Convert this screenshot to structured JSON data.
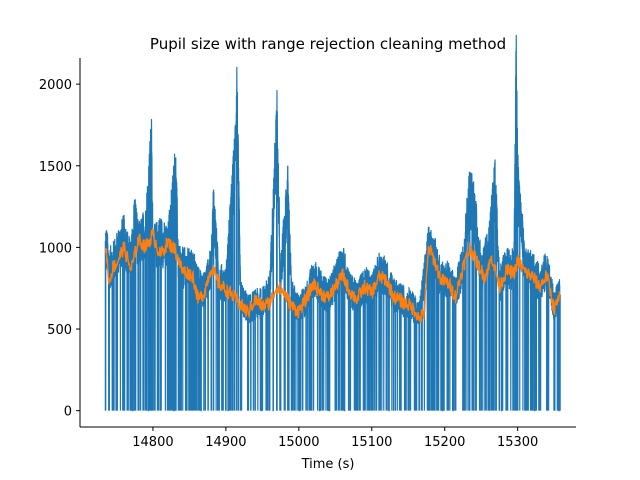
{
  "chart_data": {
    "type": "line",
    "title": "Pupil size with range rejection cleaning method",
    "xlabel": "Time (s)",
    "ylabel": "",
    "xlim": [
      14700,
      15380
    ],
    "ylim": [
      -100,
      2160
    ],
    "xticks": [
      14800,
      14900,
      15000,
      15100,
      15200,
      15300
    ],
    "yticks": [
      0,
      500,
      1000,
      1500,
      2000
    ],
    "grid": false,
    "legend": "none",
    "colors": {
      "raw": "#1f77b4",
      "cleaned": "#ff7f0e"
    },
    "series": [
      {
        "key": "raw",
        "x": [
          14735,
          14740,
          14745,
          14750,
          14760,
          14770,
          14775,
          14780,
          14790,
          14798,
          14800,
          14810,
          14820,
          14831,
          14835,
          14845,
          14855,
          14862,
          14870,
          14880,
          14883,
          14890,
          14900,
          14912,
          14915,
          14920,
          14930,
          14940,
          14950,
          14960,
          14970,
          14975,
          14985,
          14990,
          15000,
          15010,
          15020,
          15030,
          15040,
          15050,
          15060,
          15070,
          15080,
          15090,
          15100,
          15110,
          15120,
          15130,
          15140,
          15150,
          15160,
          15165,
          15178,
          15185,
          15195,
          15205,
          15215,
          15225,
          15234,
          15240,
          15250,
          15260,
          15269,
          15275,
          15285,
          15295,
          15298,
          15300,
          15310,
          15320,
          15330,
          15340,
          15350,
          15358
        ],
        "y": [
          1040,
          870,
          900,
          960,
          1050,
          900,
          1190,
          1000,
          1100,
          1580,
          980,
          1050,
          980,
          1450,
          880,
          870,
          870,
          770,
          740,
          880,
          1250,
          800,
          760,
          1500,
          1920,
          700,
          620,
          650,
          660,
          730,
          1730,
          830,
          1330,
          700,
          620,
          680,
          820,
          750,
          700,
          790,
          900,
          740,
          690,
          780,
          730,
          850,
          820,
          710,
          680,
          660,
          620,
          580,
          1000,
          950,
          810,
          800,
          720,
          900,
          1310,
          1250,
          850,
          980,
          1360,
          780,
          880,
          860,
          2060,
          1410,
          870,
          850,
          780,
          860,
          640,
          710
        ]
      },
      {
        "key": "cleaned",
        "x": [
          14735,
          14740,
          14745,
          14750,
          14760,
          14770,
          14775,
          14780,
          14790,
          14800,
          14810,
          14820,
          14830,
          14840,
          14850,
          14855,
          14862,
          14870,
          14880,
          14890,
          14900,
          14910,
          14920,
          14930,
          14940,
          14950,
          14960,
          14970,
          14980,
          14990,
          15000,
          15010,
          15020,
          15030,
          15040,
          15050,
          15060,
          15070,
          15080,
          15090,
          15100,
          15110,
          15120,
          15130,
          15140,
          15150,
          15160,
          15165,
          15172,
          15178,
          15185,
          15195,
          15205,
          15215,
          15225,
          15235,
          15245,
          15255,
          15265,
          15275,
          15285,
          15295,
          15300,
          15310,
          15320,
          15330,
          15340,
          15350,
          15358
        ],
        "y": [
          1020,
          780,
          880,
          900,
          1000,
          860,
          950,
          1050,
          1000,
          1080,
          950,
          1030,
          990,
          860,
          840,
          820,
          680,
          720,
          880,
          780,
          740,
          700,
          650,
          600,
          680,
          640,
          660,
          760,
          720,
          640,
          610,
          680,
          780,
          720,
          690,
          760,
          830,
          730,
          680,
          760,
          720,
          820,
          800,
          700,
          670,
          650,
          610,
          560,
          600,
          1000,
          930,
          800,
          780,
          700,
          880,
          1000,
          900,
          820,
          940,
          760,
          860,
          840,
          920,
          850,
          820,
          760,
          830,
          620,
          700
        ]
      }
    ]
  }
}
